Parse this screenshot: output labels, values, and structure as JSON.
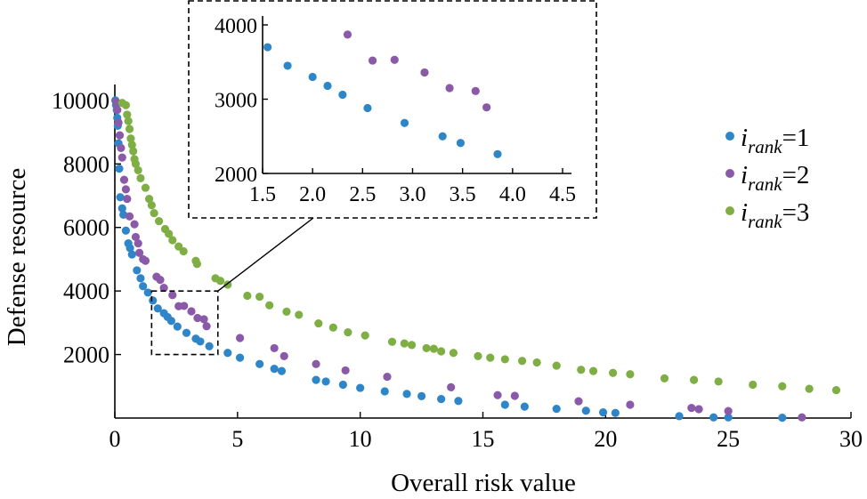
{
  "chart_data": {
    "type": "scatter",
    "xlabel": "Overall risk value",
    "ylabel": "Defense resource",
    "xlim": [
      0,
      30
    ],
    "ylim": [
      0,
      10500
    ],
    "xticks": [
      "0",
      "5",
      "10",
      "15",
      "20",
      "25",
      "30"
    ],
    "yticks": [
      "2000",
      "4000",
      "6000",
      "8000",
      "10000"
    ],
    "grid": false,
    "legend_position": "right",
    "series": [
      {
        "label_var": "i",
        "label_sub": "rank",
        "label_eq": "=1",
        "color": "#2E86C8",
        "points": [
          [
            0.02,
            10000
          ],
          [
            0.05,
            9850
          ],
          [
            0.08,
            9700
          ],
          [
            0.1,
            9450
          ],
          [
            0.12,
            9200
          ],
          [
            0.15,
            8650
          ],
          [
            0.18,
            7850
          ],
          [
            0.22,
            6950
          ],
          [
            0.3,
            6600
          ],
          [
            0.35,
            6400
          ],
          [
            0.45,
            5900
          ],
          [
            0.55,
            5500
          ],
          [
            0.62,
            5350
          ],
          [
            0.7,
            5150
          ],
          [
            0.9,
            4650
          ],
          [
            1.05,
            4400
          ],
          [
            1.15,
            4150
          ],
          [
            1.35,
            3950
          ],
          [
            1.55,
            3700
          ],
          [
            1.75,
            3450
          ],
          [
            2.0,
            3300
          ],
          [
            2.15,
            3180
          ],
          [
            2.3,
            3060
          ],
          [
            2.55,
            2880
          ],
          [
            2.92,
            2680
          ],
          [
            3.3,
            2500
          ],
          [
            3.48,
            2410
          ],
          [
            3.85,
            2260
          ],
          [
            4.6,
            2050
          ],
          [
            5.1,
            1900
          ],
          [
            5.9,
            1700
          ],
          [
            6.5,
            1550
          ],
          [
            6.8,
            1480
          ],
          [
            8.2,
            1200
          ],
          [
            8.6,
            1150
          ],
          [
            9.3,
            1050
          ],
          [
            10.0,
            950
          ],
          [
            11.0,
            840
          ],
          [
            11.9,
            760
          ],
          [
            12.5,
            690
          ],
          [
            13.3,
            600
          ],
          [
            14.0,
            540
          ],
          [
            15.9,
            420
          ],
          [
            16.7,
            360
          ],
          [
            18.0,
            290
          ],
          [
            19.2,
            230
          ],
          [
            19.9,
            180
          ],
          [
            20.4,
            160
          ],
          [
            23.0,
            60
          ],
          [
            24.4,
            20
          ],
          [
            25.0,
            20
          ],
          [
            27.2,
            10
          ]
        ]
      },
      {
        "label_var": "i",
        "label_sub": "rank",
        "label_eq": "=2",
        "color": "#8A5AA8",
        "points": [
          [
            0.05,
            9950
          ],
          [
            0.1,
            9700
          ],
          [
            0.15,
            9300
          ],
          [
            0.2,
            8900
          ],
          [
            0.25,
            8500
          ],
          [
            0.3,
            8200
          ],
          [
            0.38,
            7500
          ],
          [
            0.45,
            7200
          ],
          [
            0.5,
            6900
          ],
          [
            0.6,
            6350
          ],
          [
            0.8,
            6100
          ],
          [
            0.85,
            5700
          ],
          [
            0.95,
            5500
          ],
          [
            1.0,
            5200
          ],
          [
            1.15,
            5000
          ],
          [
            1.25,
            4950
          ],
          [
            1.7,
            4450
          ],
          [
            1.85,
            4350
          ],
          [
            2.0,
            4100
          ],
          [
            2.35,
            3870
          ],
          [
            2.6,
            3520
          ],
          [
            2.82,
            3530
          ],
          [
            3.12,
            3360
          ],
          [
            3.37,
            3150
          ],
          [
            3.63,
            3110
          ],
          [
            3.74,
            2890
          ],
          [
            5.1,
            2520
          ],
          [
            6.5,
            2200
          ],
          [
            6.9,
            1950
          ],
          [
            8.2,
            1700
          ],
          [
            9.4,
            1500
          ],
          [
            11.1,
            1300
          ],
          [
            13.7,
            970
          ],
          [
            15.6,
            720
          ],
          [
            16.3,
            700
          ],
          [
            18.9,
            530
          ],
          [
            21.0,
            420
          ],
          [
            23.5,
            320
          ],
          [
            23.8,
            280
          ],
          [
            25.0,
            220
          ],
          [
            28.0,
            20
          ]
        ]
      },
      {
        "label_var": "i",
        "label_sub": "rank",
        "label_eq": "=3",
        "color": "#7FAE44",
        "points": [
          [
            0.3,
            9920
          ],
          [
            0.45,
            9850
          ],
          [
            0.5,
            9550
          ],
          [
            0.55,
            9350
          ],
          [
            0.6,
            9100
          ],
          [
            0.65,
            8800
          ],
          [
            0.7,
            8600
          ],
          [
            0.75,
            8400
          ],
          [
            0.8,
            8150
          ],
          [
            0.85,
            8000
          ],
          [
            0.95,
            7800
          ],
          [
            1.05,
            7550
          ],
          [
            1.25,
            7250
          ],
          [
            1.4,
            6900
          ],
          [
            1.5,
            6700
          ],
          [
            1.6,
            6450
          ],
          [
            1.8,
            6200
          ],
          [
            2.05,
            5950
          ],
          [
            2.2,
            5800
          ],
          [
            2.35,
            5600
          ],
          [
            2.6,
            5400
          ],
          [
            2.8,
            5250
          ],
          [
            3.3,
            4950
          ],
          [
            3.35,
            4850
          ],
          [
            4.1,
            4400
          ],
          [
            4.3,
            4320
          ],
          [
            4.6,
            4200
          ],
          [
            5.4,
            3850
          ],
          [
            5.9,
            3820
          ],
          [
            6.3,
            3550
          ],
          [
            7.0,
            3350
          ],
          [
            7.5,
            3250
          ],
          [
            8.3,
            2980
          ],
          [
            8.9,
            2850
          ],
          [
            9.5,
            2700
          ],
          [
            10.2,
            2600
          ],
          [
            11.3,
            2400
          ],
          [
            11.8,
            2350
          ],
          [
            12.1,
            2300
          ],
          [
            12.7,
            2200
          ],
          [
            13.0,
            2180
          ],
          [
            13.3,
            2100
          ],
          [
            13.8,
            2050
          ],
          [
            14.8,
            1950
          ],
          [
            15.3,
            1900
          ],
          [
            15.9,
            1850
          ],
          [
            16.6,
            1800
          ],
          [
            17.2,
            1750
          ],
          [
            18.0,
            1650
          ],
          [
            19.0,
            1520
          ],
          [
            19.5,
            1480
          ],
          [
            20.3,
            1420
          ],
          [
            21.0,
            1380
          ],
          [
            22.4,
            1250
          ],
          [
            23.6,
            1200
          ],
          [
            24.6,
            1150
          ],
          [
            26.0,
            1050
          ],
          [
            27.2,
            1000
          ],
          [
            28.3,
            920
          ],
          [
            29.4,
            880
          ]
        ]
      }
    ],
    "inset": {
      "xlim": [
        1.5,
        4.5
      ],
      "ylim": [
        2000,
        4000
      ],
      "xticks": [
        "1.5",
        "2.0",
        "2.5",
        "3.0",
        "3.5",
        "4.0",
        "4.5"
      ],
      "yticks": [
        "2000",
        "3000",
        "4000"
      ],
      "zoom_box": {
        "x": [
          1.5,
          4.2
        ],
        "y": [
          2000,
          4000
        ]
      }
    }
  }
}
